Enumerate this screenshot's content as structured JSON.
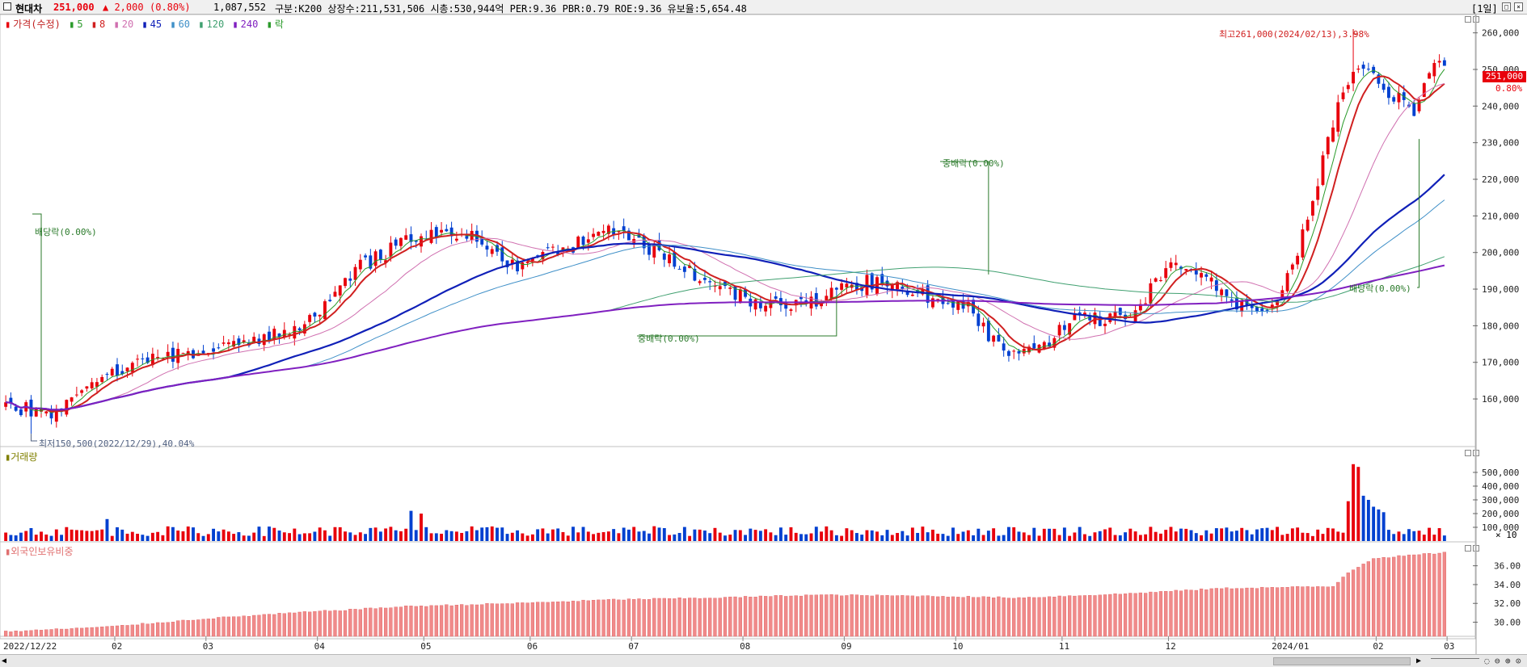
{
  "header": {
    "stock_name": "현대차",
    "price": "251,000",
    "change": "▲ 2,000",
    "change_pct": "(0.80%)",
    "volume": "1,087,552",
    "info": "구분:K200 상장수:211,531,506 시총:530,944억 PER:9.36 PBR:0.79 ROE:9.36 유보율:5,654.48",
    "period_button": "[1일]",
    "up_color": "#e8000c",
    "down_color": "#0040d0"
  },
  "legend": {
    "price_label": "가격(수정)",
    "ma": [
      "5",
      "8",
      "20",
      "45",
      "60",
      "120",
      "240"
    ],
    "ma_colors": [
      "#2a9a2a",
      "#d02020",
      "#d070b0",
      "#1020b8",
      "#4090c8",
      "#40a070",
      "#8020c0"
    ],
    "rak_label": "락"
  },
  "annotations": {
    "high": "최고261,000(2024/02/13),3.98%",
    "low": "최저150,500(2022/12/29),40.04%",
    "dividend_1": "배당락(0.00%)",
    "dividend_2": "배당락(0.00%)",
    "bonus_1": "중배락(0.00%)",
    "bonus_2": "중배락(0.00%)",
    "current_price_tag": "251,000",
    "current_pct_tag": "0.80%"
  },
  "panels": {
    "volume_title": "거래량",
    "volume_unit": "× 10",
    "foreign_title": "외국인보유비중"
  },
  "chart_data": [
    {
      "type": "candlestick",
      "title": "",
      "ylim": [
        147000,
        265000
      ],
      "yticks": [
        "260,000",
        "250,000",
        "240,000",
        "230,000",
        "220,000",
        "210,000",
        "200,000",
        "190,000",
        "180,000",
        "170,000",
        "160,000"
      ],
      "xtick_labels": [
        "2022/12/22",
        "02",
        "03",
        "04",
        "05",
        "06",
        "07",
        "08",
        "09",
        "10",
        "11",
        "12",
        "2024/01",
        "02",
        "03"
      ],
      "close_points": [
        [
          0,
          158000
        ],
        [
          10,
          156000
        ],
        [
          20,
          166000
        ],
        [
          30,
          171000
        ],
        [
          40,
          174000
        ],
        [
          50,
          176000
        ],
        [
          60,
          181000
        ],
        [
          70,
          196000
        ],
        [
          80,
          204000
        ],
        [
          90,
          206000
        ],
        [
          100,
          196000
        ],
        [
          110,
          201000
        ],
        [
          120,
          206000
        ],
        [
          130,
          199000
        ],
        [
          140,
          190000
        ],
        [
          150,
          186000
        ],
        [
          160,
          187000
        ],
        [
          170,
          192000
        ],
        [
          180,
          189000
        ],
        [
          190,
          185000
        ],
        [
          195,
          176000
        ],
        [
          200,
          172000
        ],
        [
          205,
          174000
        ],
        [
          210,
          182000
        ],
        [
          220,
          182000
        ],
        [
          225,
          188000
        ],
        [
          230,
          198000
        ],
        [
          235,
          196000
        ],
        [
          240,
          188000
        ],
        [
          247,
          183000
        ],
        [
          252,
          188000
        ],
        [
          258,
          214000
        ],
        [
          263,
          241000
        ],
        [
          268,
          252000
        ],
        [
          273,
          244000
        ],
        [
          278,
          239000
        ],
        [
          282,
          250000
        ],
        [
          284,
          251000
        ]
      ],
      "last_close": 251000,
      "high": 261000,
      "low": 150500
    },
    {
      "type": "bar",
      "title": "",
      "yticks": [
        "500,000",
        "400,000",
        "300,000",
        "200,000",
        "100,000"
      ],
      "unit": "× 10",
      "baseline_level": 80000,
      "spikes": [
        {
          "index": 20,
          "value": 160000
        },
        {
          "index": 80,
          "value": 220000
        },
        {
          "index": 82,
          "value": 200000
        },
        {
          "index": 265,
          "value": 290000
        },
        {
          "index": 266,
          "value": 560000
        },
        {
          "index": 267,
          "value": 540000
        },
        {
          "index": 268,
          "value": 330000
        },
        {
          "index": 269,
          "value": 300000
        },
        {
          "index": 270,
          "value": 250000
        },
        {
          "index": 271,
          "value": 230000
        },
        {
          "index": 272,
          "value": 210000
        }
      ]
    },
    {
      "type": "bar",
      "title": "",
      "yticks": [
        "36.00",
        "34.00",
        "32.00",
        "30.00"
      ],
      "ylim": [
        28.5,
        37.6
      ],
      "levels": [
        [
          0,
          29.0
        ],
        [
          20,
          29.5
        ],
        [
          40,
          30.4
        ],
        [
          60,
          31.1
        ],
        [
          80,
          31.7
        ],
        [
          100,
          32.0
        ],
        [
          120,
          32.4
        ],
        [
          140,
          32.6
        ],
        [
          160,
          32.9
        ],
        [
          180,
          32.8
        ],
        [
          200,
          32.6
        ],
        [
          220,
          33.0
        ],
        [
          240,
          33.6
        ],
        [
          262,
          33.8
        ],
        [
          265,
          35.3
        ],
        [
          270,
          36.8
        ],
        [
          284,
          37.4
        ]
      ]
    }
  ]
}
